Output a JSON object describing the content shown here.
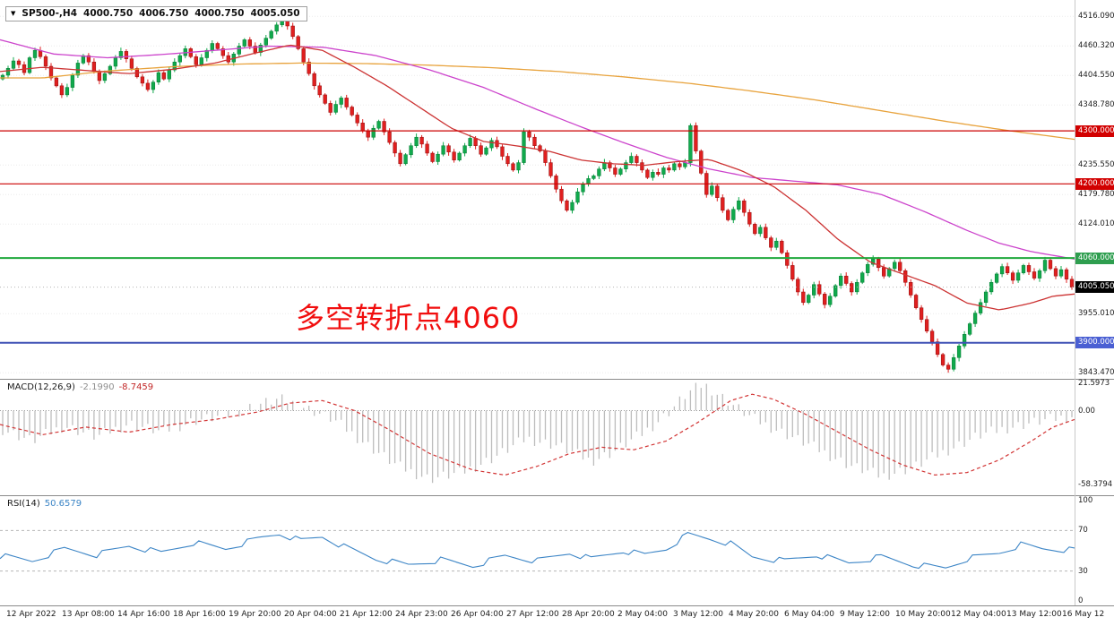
{
  "header": {
    "collapse_icon": "▼",
    "symbol_period": "SP500-,H4",
    "open": "4000.750",
    "high": "4006.750",
    "low": "4000.750",
    "close": "4005.050"
  },
  "annotation": {
    "text": "多空转折点4060",
    "color": "#f10e0e"
  },
  "macd_panel": {
    "label": "MACD(12,26,9)",
    "value_main": "-2.1990",
    "value_signal": "-8.7459"
  },
  "rsi_panel": {
    "label": "RSI(14)",
    "value": "50.6579"
  },
  "colors": {
    "candle_up": "#10a94c",
    "candle_up_edge": "#067a33",
    "candle_down": "#e01f1f",
    "candle_down_edge": "#8f0f0f",
    "ma_fast_red": "#cc3333",
    "ma_magenta": "#cc44cc",
    "ma_orange": "#e8a33d",
    "hline_red": "#cc0000",
    "hline_green": "#1fa83c",
    "hline_blue": "#3f51b5",
    "badge_red": "#d20000",
    "badge_green": "#2e9e4f",
    "badge_blue": "#4a5fd3",
    "badge_black": "#000000",
    "macd_hist": "#bdbdbd",
    "macd_signal": "#d23535",
    "rsi_line": "#3c85c6"
  },
  "time_axis": {
    "labels": [
      "12 Apr 2022",
      "13 Apr 08:00",
      "14 Apr 16:00",
      "18 Apr 16:00",
      "19 Apr 20:00",
      "20 Apr 04:00",
      "21 Apr 12:00",
      "24 Apr 23:00",
      "26 Apr 04:00",
      "27 Apr 12:00",
      "28 Apr 20:00",
      "2 May 04:00",
      "3 May 12:00",
      "4 May 20:00",
      "6 May 04:00",
      "9 May 12:00",
      "10 May 20:00",
      "12 May 04:00",
      "13 May 12:00",
      "16 May 12"
    ]
  },
  "chart_data": [
    {
      "type": "candlestick",
      "title": "SP500-,H4",
      "ylim": [
        3832,
        4547
      ],
      "n_bars": 200,
      "first_open": 4398,
      "closes": [
        4405,
        4418,
        4432,
        4425,
        4410,
        4438,
        4452,
        4440,
        4422,
        4400,
        4385,
        4368,
        4382,
        4405,
        4428,
        4442,
        4430,
        4412,
        4395,
        4408,
        4422,
        4438,
        4450,
        4436,
        4418,
        4402,
        4390,
        4378,
        4392,
        4410,
        4398,
        4415,
        4430,
        4442,
        4455,
        4440,
        4425,
        4438,
        4452,
        4465,
        4455,
        4442,
        4430,
        4445,
        4460,
        4472,
        4460,
        4448,
        4462,
        4475,
        4488,
        4500,
        4512,
        4498,
        4478,
        4455,
        4430,
        4408,
        4385,
        4368,
        4352,
        4335,
        4350,
        4362,
        4345,
        4330,
        4315,
        4300,
        4288,
        4305,
        4318,
        4298,
        4278,
        4258,
        4238,
        4255,
        4272,
        4288,
        4275,
        4258,
        4242,
        4256,
        4272,
        4260,
        4245,
        4258,
        4272,
        4286,
        4272,
        4256,
        4268,
        4282,
        4270,
        4252,
        4238,
        4226,
        4240,
        4298,
        4288,
        4272,
        4262,
        4240,
        4215,
        4190,
        4168,
        4150,
        4165,
        4185,
        4200,
        4210,
        4215,
        4228,
        4240,
        4230,
        4218,
        4228,
        4240,
        4252,
        4240,
        4226,
        4212,
        4222,
        4218,
        4230,
        4226,
        4238,
        4232,
        4240,
        4310,
        4262,
        4220,
        4180,
        4196,
        4174,
        4150,
        4132,
        4152,
        4168,
        4146,
        4124,
        4106,
        4118,
        4098,
        4080,
        4092,
        4070,
        4046,
        4020,
        3996,
        3976,
        3990,
        4010,
        3992,
        3972,
        3988,
        4008,
        4026,
        4012,
        3996,
        4014,
        4032,
        4048,
        4058,
        4042,
        4026,
        4040,
        4052,
        4036,
        4014,
        3990,
        3966,
        3944,
        3922,
        3902,
        3878,
        3858,
        3850,
        3872,
        3894,
        3916,
        3936,
        3956,
        3976,
        3996,
        4014,
        4030,
        4044,
        4032,
        4018,
        4032,
        4046,
        4034,
        4022,
        4036,
        4056,
        4040,
        4026,
        4038,
        4020,
        4005.05
      ],
      "spike_high": {
        "index": 52,
        "price": 4516.09
      },
      "spike_low": {
        "index": 176,
        "price": 3843.47
      },
      "y_ticks": [
        {
          "value": 4516.09,
          "label": "4516.090"
        },
        {
          "value": 4460.32,
          "label": "4460.320"
        },
        {
          "value": 4404.55,
          "label": "4404.550"
        },
        {
          "value": 4348.78,
          "label": "4348.780"
        },
        {
          "value": 4235.55,
          "label": "4235.550"
        },
        {
          "value": 4179.78,
          "label": "4179.780"
        },
        {
          "value": 4124.01,
          "label": "4124.010"
        },
        {
          "value": 3955.01,
          "label": "3955.010"
        },
        {
          "value": 3843.47,
          "label": "3843.470"
        }
      ],
      "hlines": [
        {
          "price": 4300,
          "label": "4300.000",
          "line": "#cc0000",
          "badge": "#d20000",
          "width": 1.2
        },
        {
          "price": 4200,
          "label": "4200.000",
          "line": "#cc0000",
          "badge": "#d20000",
          "width": 1.2
        },
        {
          "price": 4060,
          "label": "4060.000",
          "line": "#1fa83c",
          "badge": "#2e9e4f",
          "width": 2
        },
        {
          "price": 3900,
          "label": "3900.000",
          "line": "#3f51b5",
          "badge": "#4a5fd3",
          "width": 2
        }
      ],
      "current_price": {
        "price": 4005.05,
        "label": "4005.050",
        "badge": "#000000"
      },
      "ma_lines": [
        {
          "name": "ma-orange",
          "color": "#e8a33d",
          "points": [
            [
              0.04,
              4400
            ],
            [
              0.1,
              4413
            ],
            [
              0.16,
              4421
            ],
            [
              0.22,
              4426
            ],
            [
              0.28,
              4428
            ],
            [
              0.34,
              4427
            ],
            [
              0.4,
              4424
            ],
            [
              0.46,
              4419
            ],
            [
              0.52,
              4412
            ],
            [
              0.58,
              4402
            ],
            [
              0.64,
              4390
            ],
            [
              0.7,
              4375
            ],
            [
              0.76,
              4358
            ],
            [
              0.82,
              4338
            ],
            [
              0.88,
              4318
            ],
            [
              0.94,
              4300
            ],
            [
              1.0,
              4284
            ]
          ]
        },
        {
          "name": "ma-magenta",
          "color": "#cc44cc",
          "points": [
            [
              0.0,
              4472
            ],
            [
              0.05,
              4445
            ],
            [
              0.1,
              4438
            ],
            [
              0.15,
              4444
            ],
            [
              0.2,
              4452
            ],
            [
              0.25,
              4460
            ],
            [
              0.3,
              4458
            ],
            [
              0.35,
              4442
            ],
            [
              0.4,
              4415
            ],
            [
              0.45,
              4382
            ],
            [
              0.5,
              4340
            ],
            [
              0.54,
              4308
            ],
            [
              0.58,
              4278
            ],
            [
              0.62,
              4250
            ],
            [
              0.66,
              4228
            ],
            [
              0.7,
              4212
            ],
            [
              0.74,
              4205
            ],
            [
              0.78,
              4198
            ],
            [
              0.82,
              4180
            ],
            [
              0.86,
              4148
            ],
            [
              0.9,
              4112
            ],
            [
              0.93,
              4088
            ],
            [
              0.96,
              4072
            ],
            [
              1.0,
              4058
            ]
          ]
        },
        {
          "name": "ma-fast-red",
          "color": "#cc3333",
          "points": [
            [
              0.0,
              4412
            ],
            [
              0.04,
              4420
            ],
            [
              0.08,
              4414
            ],
            [
              0.12,
              4408
            ],
            [
              0.16,
              4416
            ],
            [
              0.2,
              4428
            ],
            [
              0.24,
              4448
            ],
            [
              0.27,
              4462
            ],
            [
              0.3,
              4452
            ],
            [
              0.33,
              4420
            ],
            [
              0.36,
              4385
            ],
            [
              0.39,
              4345
            ],
            [
              0.42,
              4305
            ],
            [
              0.45,
              4280
            ],
            [
              0.48,
              4272
            ],
            [
              0.51,
              4262
            ],
            [
              0.54,
              4245
            ],
            [
              0.57,
              4238
            ],
            [
              0.6,
              4235
            ],
            [
              0.63,
              4242
            ],
            [
              0.66,
              4246
            ],
            [
              0.69,
              4225
            ],
            [
              0.72,
              4195
            ],
            [
              0.75,
              4150
            ],
            [
              0.78,
              4095
            ],
            [
              0.81,
              4052
            ],
            [
              0.84,
              4030
            ],
            [
              0.87,
              4008
            ],
            [
              0.9,
              3975
            ],
            [
              0.93,
              3962
            ],
            [
              0.96,
              3975
            ],
            [
              0.98,
              3988
            ],
            [
              1.0,
              3992
            ]
          ]
        }
      ]
    },
    {
      "type": "macd-histogram",
      "title": "MACD(12,26,9) -2.1990 -8.7459",
      "ylim": [
        -67,
        24.5
      ],
      "ticks": [
        {
          "value": 21.5973,
          "label": "21.5973"
        },
        {
          "value": 0,
          "label": "0.00"
        },
        {
          "value": -58.3794,
          "label": "-58.3794"
        }
      ],
      "hist_points": [
        [
          0.0,
          -14
        ],
        [
          0.03,
          -24
        ],
        [
          0.06,
          -12
        ],
        [
          0.09,
          -21
        ],
        [
          0.12,
          -10
        ],
        [
          0.15,
          -17
        ],
        [
          0.18,
          -8
        ],
        [
          0.21,
          -4
        ],
        [
          0.24,
          5
        ],
        [
          0.26,
          9
        ],
        [
          0.28,
          4
        ],
        [
          0.31,
          -7
        ],
        [
          0.34,
          -26
        ],
        [
          0.37,
          -44
        ],
        [
          0.4,
          -54
        ],
        [
          0.43,
          -49
        ],
        [
          0.46,
          -37
        ],
        [
          0.49,
          -22
        ],
        [
          0.52,
          -28
        ],
        [
          0.55,
          -40
        ],
        [
          0.57,
          -33
        ],
        [
          0.6,
          -17
        ],
        [
          0.62,
          -3
        ],
        [
          0.64,
          14
        ],
        [
          0.655,
          21
        ],
        [
          0.67,
          12
        ],
        [
          0.7,
          -6
        ],
        [
          0.73,
          -18
        ],
        [
          0.76,
          -30
        ],
        [
          0.79,
          -43
        ],
        [
          0.82,
          -52
        ],
        [
          0.85,
          -45
        ],
        [
          0.88,
          -32
        ],
        [
          0.91,
          -20
        ],
        [
          0.94,
          -13
        ],
        [
          0.97,
          -8
        ],
        [
          1.0,
          -4
        ]
      ],
      "signal_points": [
        [
          0.0,
          -11
        ],
        [
          0.04,
          -19
        ],
        [
          0.08,
          -13
        ],
        [
          0.12,
          -17
        ],
        [
          0.16,
          -11
        ],
        [
          0.2,
          -7
        ],
        [
          0.24,
          -1
        ],
        [
          0.27,
          6
        ],
        [
          0.3,
          8
        ],
        [
          0.33,
          0
        ],
        [
          0.36,
          -14
        ],
        [
          0.4,
          -34
        ],
        [
          0.44,
          -47
        ],
        [
          0.47,
          -51
        ],
        [
          0.5,
          -44
        ],
        [
          0.53,
          -34
        ],
        [
          0.56,
          -29
        ],
        [
          0.59,
          -31
        ],
        [
          0.62,
          -24
        ],
        [
          0.65,
          -9
        ],
        [
          0.68,
          8
        ],
        [
          0.7,
          13
        ],
        [
          0.72,
          9
        ],
        [
          0.75,
          -3
        ],
        [
          0.78,
          -17
        ],
        [
          0.81,
          -31
        ],
        [
          0.84,
          -43
        ],
        [
          0.87,
          -51
        ],
        [
          0.9,
          -49
        ],
        [
          0.93,
          -39
        ],
        [
          0.96,
          -24
        ],
        [
          0.98,
          -13
        ],
        [
          1.0,
          -7
        ]
      ]
    },
    {
      "type": "line",
      "title": "RSI(14) 50.6579",
      "ylim": [
        -4,
        104
      ],
      "ticks": [
        {
          "value": 100,
          "label": "100"
        },
        {
          "value": 70,
          "label": "70"
        },
        {
          "value": 30,
          "label": "30"
        },
        {
          "value": 0,
          "label": "0"
        }
      ],
      "dashed_levels": [
        70,
        30
      ],
      "points": [
        [
          0.0,
          45
        ],
        [
          0.03,
          40
        ],
        [
          0.06,
          52
        ],
        [
          0.09,
          46
        ],
        [
          0.12,
          55
        ],
        [
          0.15,
          48
        ],
        [
          0.18,
          58
        ],
        [
          0.21,
          52
        ],
        [
          0.24,
          62
        ],
        [
          0.26,
          67
        ],
        [
          0.28,
          60
        ],
        [
          0.3,
          64
        ],
        [
          0.32,
          54
        ],
        [
          0.35,
          42
        ],
        [
          0.38,
          36
        ],
        [
          0.41,
          41
        ],
        [
          0.44,
          35
        ],
        [
          0.47,
          45
        ],
        [
          0.5,
          40
        ],
        [
          0.53,
          48
        ],
        [
          0.55,
          42
        ],
        [
          0.58,
          50
        ],
        [
          0.6,
          46
        ],
        [
          0.62,
          52
        ],
        [
          0.64,
          66
        ],
        [
          0.66,
          62
        ],
        [
          0.68,
          57
        ],
        [
          0.7,
          44
        ],
        [
          0.73,
          40
        ],
        [
          0.76,
          46
        ],
        [
          0.79,
          38
        ],
        [
          0.82,
          44
        ],
        [
          0.85,
          36
        ],
        [
          0.88,
          33
        ],
        [
          0.9,
          42
        ],
        [
          0.93,
          48
        ],
        [
          0.95,
          56
        ],
        [
          0.97,
          52
        ],
        [
          1.0,
          50.66
        ]
      ]
    }
  ]
}
